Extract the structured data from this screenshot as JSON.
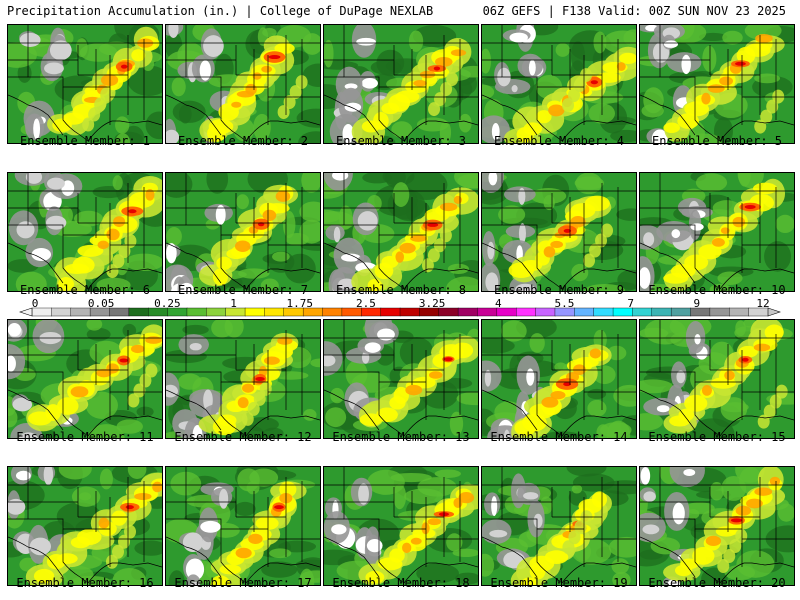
{
  "header": {
    "left": "Precipitation Accumulation (in.) | College of DuPage NEXLAB",
    "right": "06Z GEFS | F138 Valid: 00Z SUN NOV 23 2025"
  },
  "colorbar": {
    "tick_labels": [
      "0",
      "0.05",
      "0.25",
      "1",
      "1.75",
      "2.5",
      "3.25",
      "4",
      "5.5",
      "7",
      "9",
      "12"
    ],
    "colors": [
      "#eeeeee",
      "#d2d2d2",
      "#b4b4b4",
      "#969696",
      "#787878",
      "#1e6e1e",
      "#288c28",
      "#32a532",
      "#5abe32",
      "#8cd23c",
      "#c8e632",
      "#ffff00",
      "#ffe600",
      "#ffc800",
      "#ffa500",
      "#ff8200",
      "#ff5a00",
      "#ff2800",
      "#e60000",
      "#be0000",
      "#960000",
      "#8c0028",
      "#a00064",
      "#c80096",
      "#e600c8",
      "#ff32ff",
      "#c864ff",
      "#9696ff",
      "#64b4ff",
      "#32dcff",
      "#00ffff",
      "#32d2d2",
      "#3cb4b4",
      "#50a0a0",
      "#787878",
      "#969696",
      "#b4b4b4",
      "#d2d2d2"
    ]
  },
  "panels": [
    {
      "label": "Ensemble Member: 1"
    },
    {
      "label": "Ensemble Member: 2"
    },
    {
      "label": "Ensemble Member: 3"
    },
    {
      "label": "Ensemble Member: 4"
    },
    {
      "label": "Ensemble Member: 5"
    },
    {
      "label": "Ensemble Member: 6"
    },
    {
      "label": "Ensemble Member: 7"
    },
    {
      "label": "Ensemble Member: 8"
    },
    {
      "label": "Ensemble Member: 9"
    },
    {
      "label": "Ensemble Member: 10"
    },
    {
      "label": "Ensemble Member: 11"
    },
    {
      "label": "Ensemble Member: 12"
    },
    {
      "label": "Ensemble Member: 13"
    },
    {
      "label": "Ensemble Member: 14"
    },
    {
      "label": "Ensemble Member: 15"
    },
    {
      "label": "Ensemble Member: 16"
    },
    {
      "label": "Ensemble Member: 17"
    },
    {
      "label": "Ensemble Member: 18"
    },
    {
      "label": "Ensemble Member: 19"
    },
    {
      "label": "Ensemble Member: 20"
    }
  ]
}
